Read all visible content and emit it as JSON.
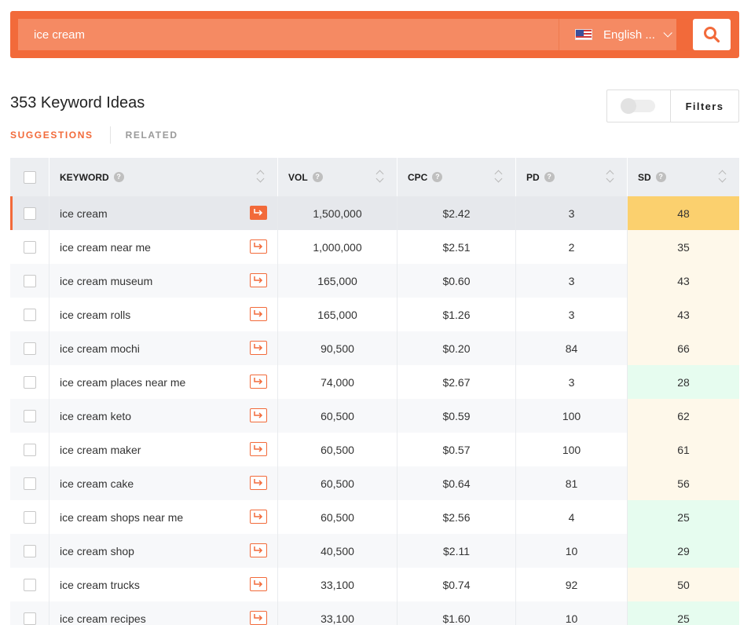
{
  "search": {
    "query": "ice cream",
    "language": "English ..."
  },
  "results": {
    "title": "353 Keyword Ideas"
  },
  "tabs": {
    "suggestions": "SUGGESTIONS",
    "related": "RELATED"
  },
  "filters": {
    "label": "Filters"
  },
  "table": {
    "columns": {
      "keyword": "KEYWORD",
      "vol": "VOL",
      "cpc": "CPC",
      "pd": "PD",
      "sd": "SD"
    },
    "rows": [
      {
        "keyword": "ice cream",
        "vol": "1,500,000",
        "cpc": "$2.42",
        "pd": "3",
        "sd": "48"
      },
      {
        "keyword": "ice cream near me",
        "vol": "1,000,000",
        "cpc": "$2.51",
        "pd": "2",
        "sd": "35"
      },
      {
        "keyword": "ice cream museum",
        "vol": "165,000",
        "cpc": "$0.60",
        "pd": "3",
        "sd": "43"
      },
      {
        "keyword": "ice cream rolls",
        "vol": "165,000",
        "cpc": "$1.26",
        "pd": "3",
        "sd": "43"
      },
      {
        "keyword": "ice cream mochi",
        "vol": "90,500",
        "cpc": "$0.20",
        "pd": "84",
        "sd": "66"
      },
      {
        "keyword": "ice cream places near me",
        "vol": "74,000",
        "cpc": "$2.67",
        "pd": "3",
        "sd": "28"
      },
      {
        "keyword": "ice cream keto",
        "vol": "60,500",
        "cpc": "$0.59",
        "pd": "100",
        "sd": "62"
      },
      {
        "keyword": "ice cream maker",
        "vol": "60,500",
        "cpc": "$0.57",
        "pd": "100",
        "sd": "61"
      },
      {
        "keyword": "ice cream cake",
        "vol": "60,500",
        "cpc": "$0.64",
        "pd": "81",
        "sd": "56"
      },
      {
        "keyword": "ice cream shops near me",
        "vol": "60,500",
        "cpc": "$2.56",
        "pd": "4",
        "sd": "25"
      },
      {
        "keyword": "ice cream shop",
        "vol": "40,500",
        "cpc": "$2.11",
        "pd": "10",
        "sd": "29"
      },
      {
        "keyword": "ice cream trucks",
        "vol": "33,100",
        "cpc": "$0.74",
        "pd": "92",
        "sd": "50"
      },
      {
        "keyword": "ice cream recipes",
        "vol": "33,100",
        "cpc": "$1.60",
        "pd": "10",
        "sd": "25"
      }
    ]
  },
  "colors": {
    "accent": "#f26a3a",
    "sd_hard": "#fbd06e",
    "sd_mid": "#fef8ea",
    "sd_easy": "#e6fcef"
  },
  "icons": {
    "search": "search-icon",
    "flag": "us-flag-icon",
    "open": "open-keyword-icon",
    "sort": "sort-icon",
    "help": "help-icon"
  }
}
